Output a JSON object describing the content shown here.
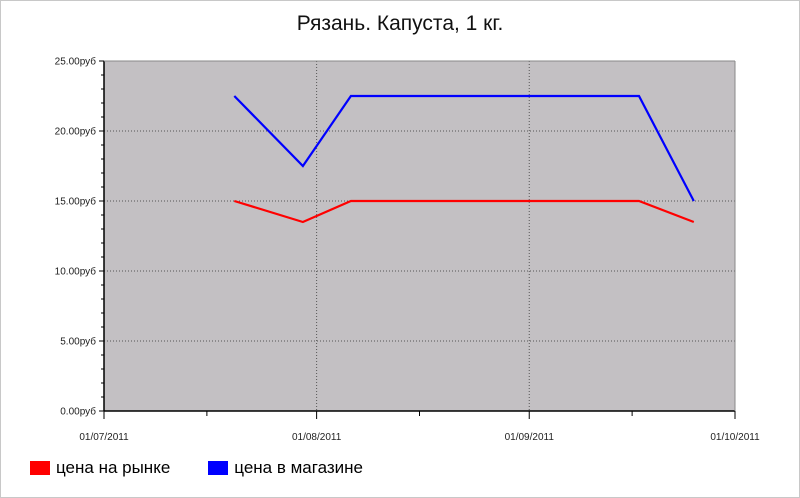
{
  "chart_data": {
    "type": "line",
    "title": "Рязань. Капуста, 1 кг.",
    "xlabel": "",
    "ylabel": "",
    "ylim": [
      0,
      25
    ],
    "y_ticks": [
      "0.00руб",
      "5.00руб",
      "10.00руб",
      "15.00руб",
      "20.00руб",
      "25.00руб"
    ],
    "x_ticks": [
      "01/07/2011",
      "01/08/2011",
      "01/09/2011",
      "01/10/2011"
    ],
    "grid": true,
    "legend_position": "bottom-left",
    "series": [
      {
        "name": "цена на рынке",
        "color": "#ff0000",
        "x": [
          "2011-07-20",
          "2011-07-30",
          "2011-08-06",
          "2011-08-13",
          "2011-08-20",
          "2011-08-27",
          "2011-09-03",
          "2011-09-10",
          "2011-09-17",
          "2011-09-25"
        ],
        "values": [
          15.0,
          13.5,
          15.0,
          15.0,
          15.0,
          15.0,
          15.0,
          15.0,
          15.0,
          13.5
        ]
      },
      {
        "name": "цена в магазине",
        "color": "#0000ff",
        "x": [
          "2011-07-20",
          "2011-07-30",
          "2011-08-06",
          "2011-08-13",
          "2011-08-20",
          "2011-08-27",
          "2011-09-03",
          "2011-09-10",
          "2011-09-17",
          "2011-09-25"
        ],
        "values": [
          22.5,
          17.5,
          22.5,
          22.5,
          22.5,
          22.5,
          22.5,
          22.5,
          22.5,
          15.0
        ]
      }
    ]
  }
}
